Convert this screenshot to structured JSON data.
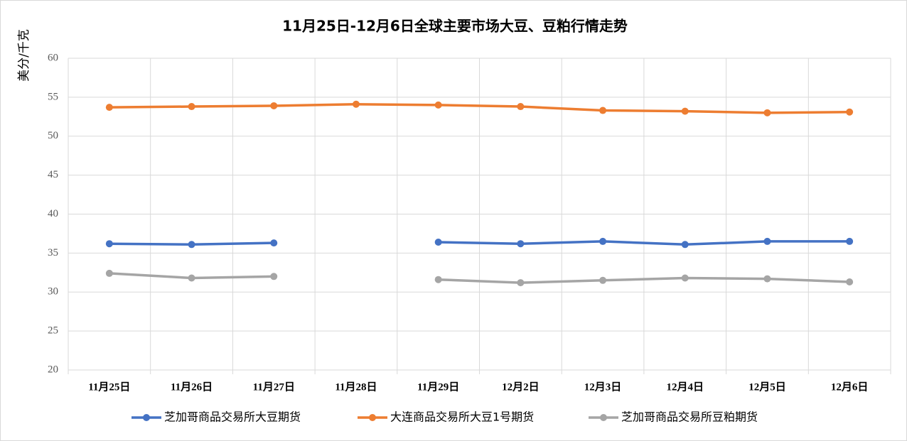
{
  "chart_data": {
    "type": "line",
    "title": "11月25日-12月6日全球主要市场大豆、豆粕行情走势",
    "y_label": "美分/千克",
    "categories": [
      "11月25日",
      "11月26日",
      "11月27日",
      "11月28日",
      "11月29日",
      "12月2日",
      "12月3日",
      "12月4日",
      "12月5日",
      "12月6日"
    ],
    "series": [
      {
        "name": "芝加哥商品交易所大豆期货",
        "color": "#4472c4",
        "values": [
          36.2,
          36.1,
          36.3,
          null,
          36.4,
          36.2,
          36.5,
          36.1,
          36.5,
          36.5
        ]
      },
      {
        "name": "大连商品交易所大豆1号期货",
        "color": "#ed7d31",
        "values": [
          53.7,
          53.8,
          53.9,
          54.1,
          54.0,
          53.8,
          53.3,
          53.2,
          53.0,
          53.1
        ]
      },
      {
        "name": "芝加哥商品交易所豆粕期货",
        "color": "#a5a5a5",
        "values": [
          32.4,
          31.8,
          32.0,
          null,
          31.6,
          31.2,
          31.5,
          31.8,
          31.7,
          31.3
        ]
      }
    ],
    "ylim": [
      20,
      60
    ],
    "yticks": [
      20,
      25,
      30,
      35,
      40,
      45,
      50,
      55,
      60
    ],
    "grid": true,
    "legend": "bottom"
  }
}
